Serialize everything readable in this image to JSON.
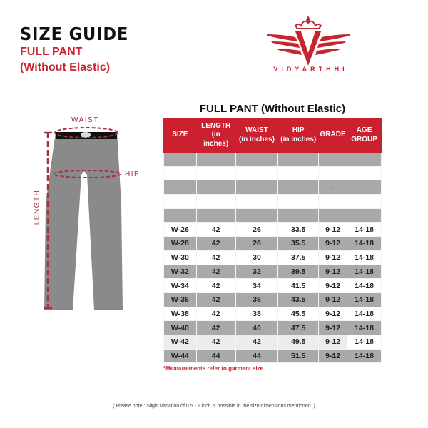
{
  "header": {
    "title": "SIZE GUIDE",
    "subtitle1": "FULL PANT",
    "subtitle2": "(Without Elastic)"
  },
  "logo": {
    "brand": "VIDYARTHHI",
    "color": "#c8242f"
  },
  "diagram": {
    "waist": "WAIST",
    "hip": "HIP",
    "length": "LENGTH"
  },
  "table": {
    "title": "FULL PANT (Without Elastic)",
    "header_color": "#cb2030",
    "columns": [
      [
        "SIZE"
      ],
      [
        "LENGTH",
        "(in",
        "inches)"
      ],
      [
        "WAIST",
        "(in inches)"
      ],
      [
        "HIP",
        "(in inches)"
      ],
      [
        "GRADE"
      ],
      [
        "AGE",
        "GROUP"
      ]
    ],
    "blank_rows": [
      [
        "",
        "",
        "",
        "",
        "",
        ""
      ],
      [
        "",
        "",
        "",
        "",
        "",
        ""
      ],
      [
        "",
        "",
        "",
        "",
        "-",
        ""
      ],
      [
        "",
        "",
        "",
        "",
        "",
        ""
      ],
      [
        "",
        "",
        "",
        "",
        "",
        ""
      ]
    ],
    "rows": [
      [
        "W-26",
        "42",
        "26",
        "33.5",
        "9-12",
        "14-18"
      ],
      [
        "W-28",
        "42",
        "28",
        "35.5",
        "9-12",
        "14-18"
      ],
      [
        "W-30",
        "42",
        "30",
        "37.5",
        "9-12",
        "14-18"
      ],
      [
        "W-32",
        "42",
        "32",
        "39.5",
        "9-12",
        "14-18"
      ],
      [
        "W-34",
        "42",
        "34",
        "41.5",
        "9-12",
        "14-18"
      ],
      [
        "W-36",
        "42",
        "36",
        "43.5",
        "9-12",
        "14-18"
      ],
      [
        "W-38",
        "42",
        "38",
        "45.5",
        "9-12",
        "14-18"
      ],
      [
        "W-40",
        "42",
        "40",
        "47.5",
        "9-12",
        "14-18"
      ],
      [
        "W-42",
        "42",
        "42",
        "49.5",
        "9-12",
        "14-18"
      ],
      [
        "W-44",
        "44",
        "44",
        "51.5",
        "9-12",
        "14-18"
      ]
    ]
  },
  "notes": {
    "measurement": "*Measurements refer to garment size",
    "variation": "( Please note : Slight  variation of 0.5 - 1 inch is possible in the size dimensions mentioned. )"
  }
}
